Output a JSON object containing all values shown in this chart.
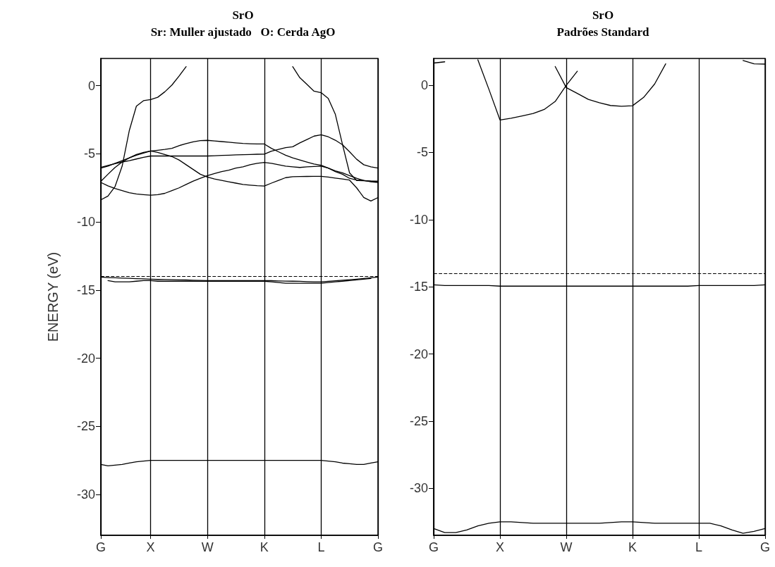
{
  "chart_data": [
    {
      "type": "line",
      "title": "SrO",
      "subtitle": "Sr: Muller ajustado   O: Cerda AgO",
      "ylabel": "ENERGY (eV)",
      "categories": [
        "G",
        null,
        null,
        null,
        null,
        null,
        null,
        "X",
        null,
        null,
        null,
        null,
        null,
        null,
        null,
        "W",
        null,
        null,
        null,
        null,
        null,
        null,
        null,
        "K",
        null,
        null,
        null,
        null,
        null,
        null,
        null,
        "L",
        null,
        null,
        null,
        null,
        null,
        null,
        null,
        "G"
      ],
      "ylim": [
        -33,
        2
      ],
      "yticks": [
        -30,
        -25,
        -20,
        -15,
        -10,
        -5,
        0
      ],
      "grid": "x",
      "marker": "none",
      "line_style": "solid",
      "ref_lines": [
        {
          "axis": "y",
          "value": -14,
          "color": "#000000",
          "line_style": "dashed"
        }
      ],
      "series": [
        {
          "color": "#000000",
          "values": [
            -8.38,
            -8.1,
            -7.4,
            -5.9,
            -3.3,
            -1.5,
            -1.1,
            -1.02,
            -0.85,
            -0.45,
            0.05,
            0.7,
            1.4,
            null,
            null,
            null,
            null,
            null,
            null,
            null,
            null,
            null,
            null,
            null,
            null,
            null,
            null,
            1.4,
            0.59,
            0.1,
            -0.4,
            -0.51,
            -0.93,
            -2.1,
            -4.3,
            -6.4,
            -6.96,
            -6.98,
            -7.0,
            -7.02
          ]
        },
        {
          "color": "#000000",
          "values": [
            -6.04,
            -5.9,
            -5.7,
            -5.5,
            -5.3,
            -5.1,
            -4.95,
            -4.79,
            -4.74,
            -4.68,
            -4.6,
            -4.4,
            -4.25,
            -4.12,
            -4.03,
            -4.01,
            -4.06,
            -4.1,
            -4.15,
            -4.2,
            -4.24,
            -4.26,
            -4.27,
            -4.28,
            -4.6,
            -4.85,
            -5.1,
            -5.3,
            -5.45,
            -5.6,
            -5.75,
            -5.84,
            -6.05,
            -6.3,
            -6.5,
            -6.8,
            -6.92,
            -6.96,
            -7.0,
            -7.02
          ]
        },
        {
          "color": "#000000",
          "values": [
            -6.0,
            -5.85,
            -5.72,
            -5.6,
            -5.5,
            -5.38,
            -5.26,
            -5.16,
            -5.16,
            -5.16,
            -5.16,
            -5.16,
            -5.16,
            -5.16,
            -5.16,
            -5.16,
            -5.14,
            -5.12,
            -5.1,
            -5.08,
            -5.06,
            -5.05,
            -5.03,
            -5.02,
            -4.8,
            -4.68,
            -4.55,
            -4.48,
            -4.2,
            -3.95,
            -3.7,
            -3.6,
            -3.75,
            -4.0,
            -4.33,
            -4.85,
            -5.4,
            -5.8,
            -5.95,
            -6.04
          ]
        },
        {
          "color": "#000000",
          "values": [
            -7.02,
            -6.5,
            -6.0,
            -5.6,
            -5.3,
            -5.05,
            -4.9,
            -4.79,
            -4.9,
            -5.05,
            -5.2,
            -5.45,
            -5.8,
            -6.15,
            -6.5,
            -6.7,
            -6.85,
            -6.95,
            -7.05,
            -7.15,
            -7.25,
            -7.3,
            -7.34,
            -7.36,
            -7.15,
            -6.95,
            -6.75,
            -6.68,
            -6.67,
            -6.66,
            -6.65,
            -6.65,
            -6.7,
            -6.78,
            -6.85,
            -6.93,
            -7.5,
            -8.2,
            -8.46,
            -8.21
          ]
        },
        {
          "color": "#000000",
          "values": [
            -7.1,
            -7.35,
            -7.55,
            -7.7,
            -7.85,
            -7.95,
            -8.0,
            -8.04,
            -8.0,
            -7.9,
            -7.7,
            -7.5,
            -7.25,
            -7.0,
            -6.8,
            -6.6,
            -6.45,
            -6.3,
            -6.2,
            -6.05,
            -5.95,
            -5.8,
            -5.7,
            -5.63,
            -5.7,
            -5.8,
            -5.9,
            -5.95,
            -6.0,
            -5.96,
            -5.93,
            -5.9,
            -6.05,
            -6.25,
            -6.4,
            -6.6,
            -6.8,
            -6.95,
            -7.05,
            -7.1
          ]
        },
        {
          "color": "#000000",
          "values": [
            -14.05,
            -14.08,
            -14.1,
            -14.12,
            -14.14,
            -14.16,
            -14.18,
            -14.2,
            -14.22,
            -14.23,
            -14.24,
            -14.25,
            -14.26,
            -14.28,
            -14.29,
            -14.3,
            -14.3,
            -14.3,
            -14.3,
            -14.3,
            -14.3,
            -14.3,
            -14.3,
            -14.3,
            -14.31,
            -14.33,
            -14.34,
            -14.35,
            -14.36,
            -14.38,
            -14.39,
            -14.4,
            -14.36,
            -14.32,
            -14.28,
            -14.24,
            -14.2,
            -14.15,
            -14.1,
            -14.05
          ]
        },
        {
          "color": "#000000",
          "values": [
            null,
            -14.3,
            -14.4,
            -14.4,
            -14.4,
            -14.35,
            -14.3,
            -14.3,
            -14.35,
            -14.35,
            -14.35,
            -14.35,
            -14.35,
            -14.35,
            -14.35,
            -14.35,
            -14.35,
            -14.35,
            -14.35,
            -14.35,
            -14.35,
            -14.35,
            -14.35,
            -14.35,
            -14.4,
            -14.45,
            -14.5,
            -14.5,
            -14.5,
            -14.5,
            -14.5,
            -14.5,
            -14.45,
            -14.4,
            -14.35,
            -14.3,
            -14.25,
            -14.2,
            -14.15,
            null
          ]
        },
        {
          "color": "#000000",
          "values": [
            -27.8,
            -27.9,
            -27.85,
            -27.8,
            -27.7,
            -27.6,
            -27.55,
            -27.5,
            -27.5,
            -27.5,
            -27.5,
            -27.5,
            -27.5,
            -27.5,
            -27.5,
            -27.5,
            -27.5,
            -27.5,
            -27.5,
            -27.5,
            -27.5,
            -27.5,
            -27.5,
            -27.5,
            -27.5,
            -27.5,
            -27.5,
            -27.5,
            -27.5,
            -27.5,
            -27.5,
            -27.5,
            -27.55,
            -27.6,
            -27.7,
            -27.75,
            -27.8,
            -27.8,
            -27.7,
            -27.6
          ]
        }
      ]
    },
    {
      "type": "line",
      "title": "SrO",
      "subtitle": "Padrões Standard",
      "categories": [
        "G",
        null,
        null,
        null,
        null,
        null,
        "X",
        null,
        null,
        null,
        null,
        null,
        "W",
        null,
        null,
        null,
        null,
        null,
        "K",
        null,
        null,
        null,
        null,
        null,
        "L",
        null,
        null,
        null,
        null,
        null,
        "G"
      ],
      "ylim": [
        -33.5,
        2
      ],
      "yticks": [
        -30,
        -25,
        -20,
        -15,
        -10,
        -5,
        0
      ],
      "grid": "x",
      "marker": "none",
      "line_style": "solid",
      "ref_lines": [
        {
          "axis": "y",
          "value": -14,
          "color": "#000000",
          "line_style": "dashed"
        }
      ],
      "series": [
        {
          "color": "#000000",
          "values": [
            1.66,
            1.75,
            null,
            null,
            1.9,
            -0.3,
            -2.58,
            -2.45,
            -2.28,
            -2.1,
            -1.8,
            -1.2,
            0,
            1.05,
            null,
            null,
            null,
            null,
            null,
            null,
            null,
            null,
            null,
            null,
            null,
            null,
            null,
            null,
            null,
            null,
            null
          ]
        },
        {
          "color": "#000000",
          "values": [
            null,
            null,
            null,
            null,
            null,
            null,
            null,
            null,
            null,
            null,
            null,
            1.4,
            -0.17,
            -0.6,
            -1.05,
            -1.3,
            -1.5,
            -1.56,
            -1.52,
            -0.9,
            0.1,
            1.6,
            null,
            null,
            null,
            null,
            null,
            null,
            1.85,
            1.6,
            1.58
          ]
        },
        {
          "color": "#000000",
          "values": [
            -14.85,
            -14.9,
            -14.9,
            -14.9,
            -14.9,
            -14.9,
            -14.95,
            -14.95,
            -14.95,
            -14.95,
            -14.95,
            -14.95,
            -14.95,
            -14.95,
            -14.95,
            -14.95,
            -14.95,
            -14.95,
            -14.95,
            -14.95,
            -14.95,
            -14.95,
            -14.95,
            -14.95,
            -14.9,
            -14.9,
            -14.9,
            -14.9,
            -14.9,
            -14.9,
            -14.85
          ]
        },
        {
          "color": "#000000",
          "values": [
            -33.0,
            -33.3,
            -33.3,
            -33.1,
            -32.8,
            -32.6,
            -32.5,
            -32.5,
            -32.55,
            -32.6,
            -32.6,
            -32.6,
            -32.6,
            -32.6,
            -32.6,
            -32.6,
            -32.55,
            -32.5,
            -32.5,
            -32.55,
            -32.6,
            -32.6,
            -32.6,
            -32.6,
            -32.6,
            -32.6,
            -32.8,
            -33.1,
            -33.35,
            -33.2,
            -33.0
          ]
        }
      ]
    }
  ]
}
